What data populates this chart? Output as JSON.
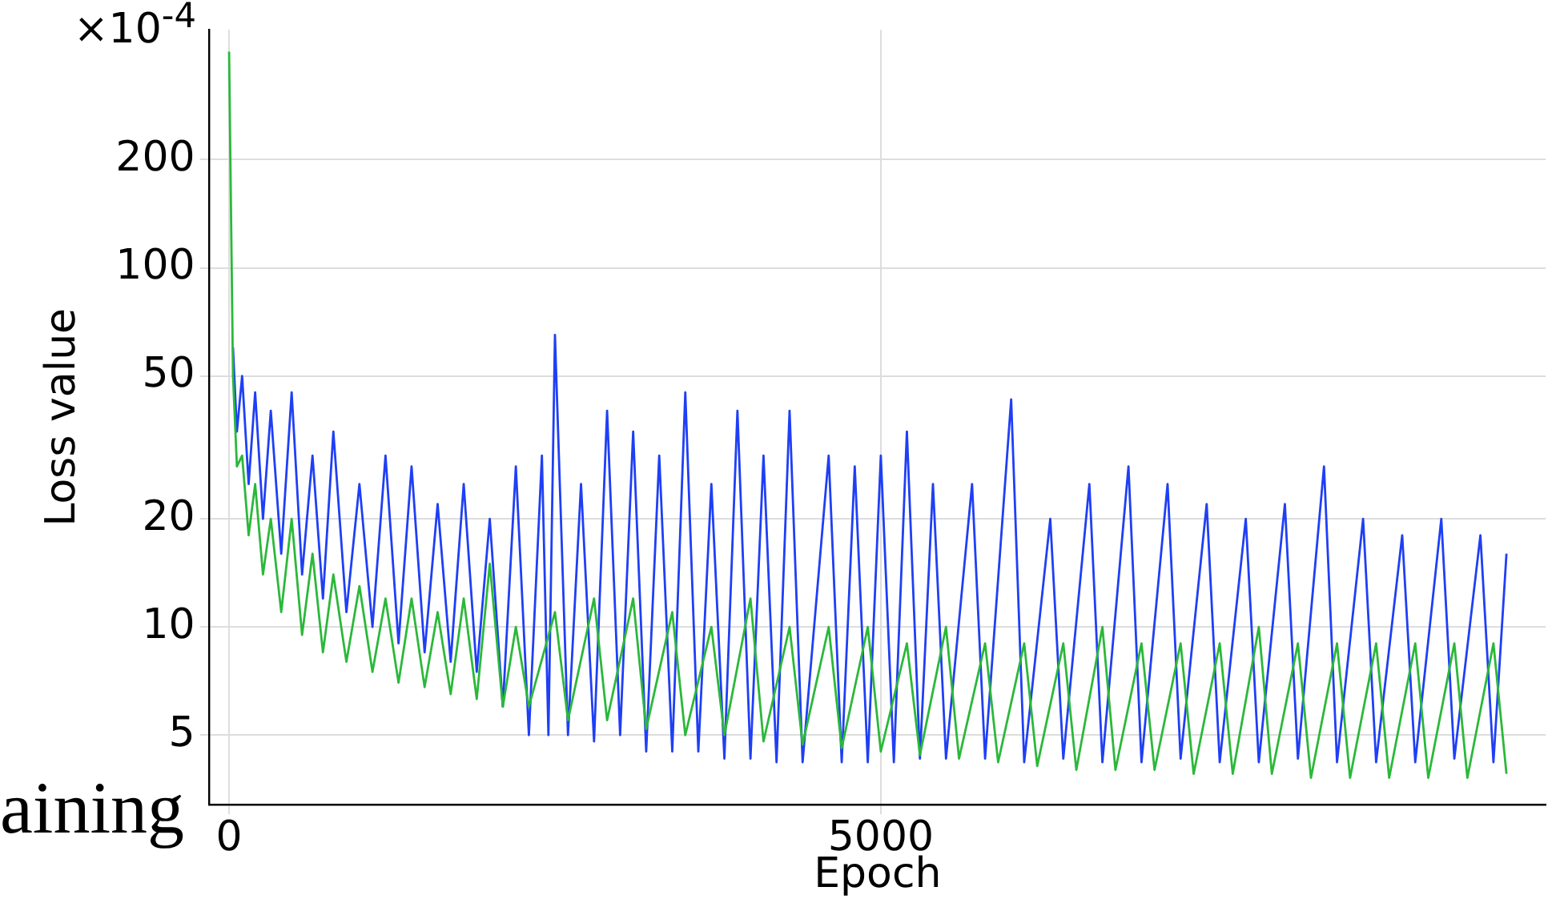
{
  "chart_data": {
    "type": "line",
    "xlabel": "Epoch",
    "ylabel": "Loss value",
    "annotations": [
      "×10$^{-4}$",
      "aining"
    ],
    "log": "y",
    "grid": true,
    "legend": false,
    "marker": "none",
    "line_style": "solid",
    "xlim": [
      -150,
      10100
    ],
    "xticks": [
      0,
      5000
    ],
    "ylim": [
      3.2,
      460
    ],
    "yticks": [
      5,
      10,
      20,
      50,
      100,
      200
    ],
    "series": [
      {
        "color": "#1f3ff5",
        "x": [
          30,
          60,
          100,
          150,
          200,
          260,
          320,
          400,
          480,
          560,
          640,
          720,
          800,
          900,
          1000,
          1100,
          1200,
          1300,
          1400,
          1500,
          1600,
          1700,
          1800,
          1900,
          2000,
          2100,
          2200,
          2300,
          2400,
          2450,
          2500,
          2600,
          2700,
          2800,
          2900,
          3000,
          3100,
          3200,
          3300,
          3400,
          3500,
          3600,
          3700,
          3800,
          3900,
          4000,
          4100,
          4200,
          4300,
          4400,
          4600,
          4700,
          4800,
          4900,
          5000,
          5100,
          5200,
          5300,
          5400,
          5500,
          5700,
          5800,
          6000,
          6100,
          6300,
          6400,
          6600,
          6700,
          6900,
          7000,
          7200,
          7300,
          7500,
          7600,
          7800,
          7900,
          8100,
          8200,
          8400,
          8500,
          8700,
          8800,
          9000,
          9100,
          9300,
          9400,
          9600,
          9700,
          9800
        ],
        "values": [
          60,
          35,
          50,
          25,
          45,
          20,
          40,
          16,
          45,
          14,
          30,
          12,
          35,
          11,
          25,
          10,
          30,
          9,
          28,
          8.5,
          22,
          8,
          25,
          7.5,
          20,
          6,
          28,
          5,
          30,
          5,
          65,
          5,
          25,
          4.8,
          40,
          5,
          35,
          4.5,
          30,
          4.5,
          45,
          4.5,
          25,
          4.3,
          40,
          4.3,
          30,
          4.2,
          40,
          4.2,
          30,
          4.2,
          28,
          4.2,
          30,
          4.2,
          35,
          4.3,
          25,
          4.3,
          25,
          4.3,
          43,
          4.2,
          20,
          4.3,
          25,
          4.2,
          28,
          4.2,
          25,
          4.3,
          22,
          4.2,
          20,
          4.2,
          22,
          4.3,
          28,
          4.2,
          20,
          4.2,
          18,
          4.2,
          20,
          4.3,
          18,
          4.2,
          16
        ]
      },
      {
        "color": "#2bb83a",
        "x": [
          0,
          30,
          60,
          100,
          150,
          200,
          260,
          320,
          400,
          480,
          560,
          640,
          720,
          800,
          900,
          1000,
          1100,
          1200,
          1300,
          1400,
          1500,
          1600,
          1700,
          1800,
          1900,
          2000,
          2100,
          2200,
          2300,
          2500,
          2600,
          2800,
          2900,
          3100,
          3200,
          3400,
          3500,
          3700,
          3800,
          4000,
          4100,
          4300,
          4400,
          4600,
          4700,
          4900,
          5000,
          5200,
          5300,
          5500,
          5600,
          5800,
          5900,
          6100,
          6200,
          6400,
          6500,
          6700,
          6800,
          7000,
          7100,
          7300,
          7400,
          7600,
          7700,
          7900,
          8000,
          8200,
          8300,
          8500,
          8600,
          8800,
          8900,
          9100,
          9200,
          9400,
          9500,
          9700,
          9800
        ],
        "values": [
          400,
          50,
          28,
          30,
          18,
          25,
          14,
          20,
          11,
          20,
          9.5,
          16,
          8.5,
          14,
          8,
          13,
          7.5,
          12,
          7,
          12,
          6.8,
          11,
          6.5,
          12,
          6.3,
          15,
          6,
          10,
          6,
          11,
          5.5,
          12,
          5.5,
          12,
          5.2,
          11,
          5,
          10,
          5,
          12,
          4.8,
          10,
          4.7,
          10,
          4.6,
          10,
          4.5,
          9,
          4.4,
          10,
          4.3,
          9,
          4.2,
          9,
          4.1,
          9,
          4,
          10,
          4,
          9,
          4,
          9,
          3.9,
          9,
          3.9,
          10,
          3.9,
          9,
          3.8,
          9,
          3.8,
          9,
          3.8,
          9,
          3.8,
          9,
          3.8,
          9,
          3.9
        ]
      }
    ]
  }
}
